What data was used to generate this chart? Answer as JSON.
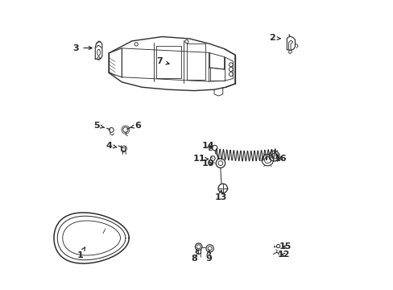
{
  "bg": "#ffffff",
  "fw": 4.89,
  "fh": 3.6,
  "dpi": 100,
  "lc": "#2a2a2a",
  "lw": 0.9,
  "fs": 8.0,
  "labels": {
    "1": [
      0.095,
      0.118,
      0.118,
      0.155
    ],
    "2": [
      0.762,
      0.87,
      0.8,
      0.868
    ],
    "3": [
      0.082,
      0.836,
      0.148,
      0.836
    ],
    "4": [
      0.196,
      0.498,
      0.232,
      0.49
    ],
    "5": [
      0.154,
      0.567,
      0.188,
      0.558
    ],
    "6": [
      0.295,
      0.567,
      0.268,
      0.56
    ],
    "7": [
      0.372,
      0.79,
      0.415,
      0.778
    ],
    "8": [
      0.492,
      0.107,
      0.506,
      0.14
    ],
    "9": [
      0.542,
      0.108,
      0.543,
      0.138
    ],
    "10": [
      0.538,
      0.437,
      0.566,
      0.433
    ],
    "11": [
      0.507,
      0.452,
      0.543,
      0.451
    ],
    "12": [
      0.802,
      0.12,
      0.782,
      0.122
    ],
    "13": [
      0.582,
      0.318,
      0.585,
      0.347
    ],
    "14": [
      0.54,
      0.498,
      0.558,
      0.482
    ],
    "15": [
      0.805,
      0.148,
      0.788,
      0.15
    ],
    "16": [
      0.79,
      0.453,
      0.774,
      0.447
    ]
  }
}
